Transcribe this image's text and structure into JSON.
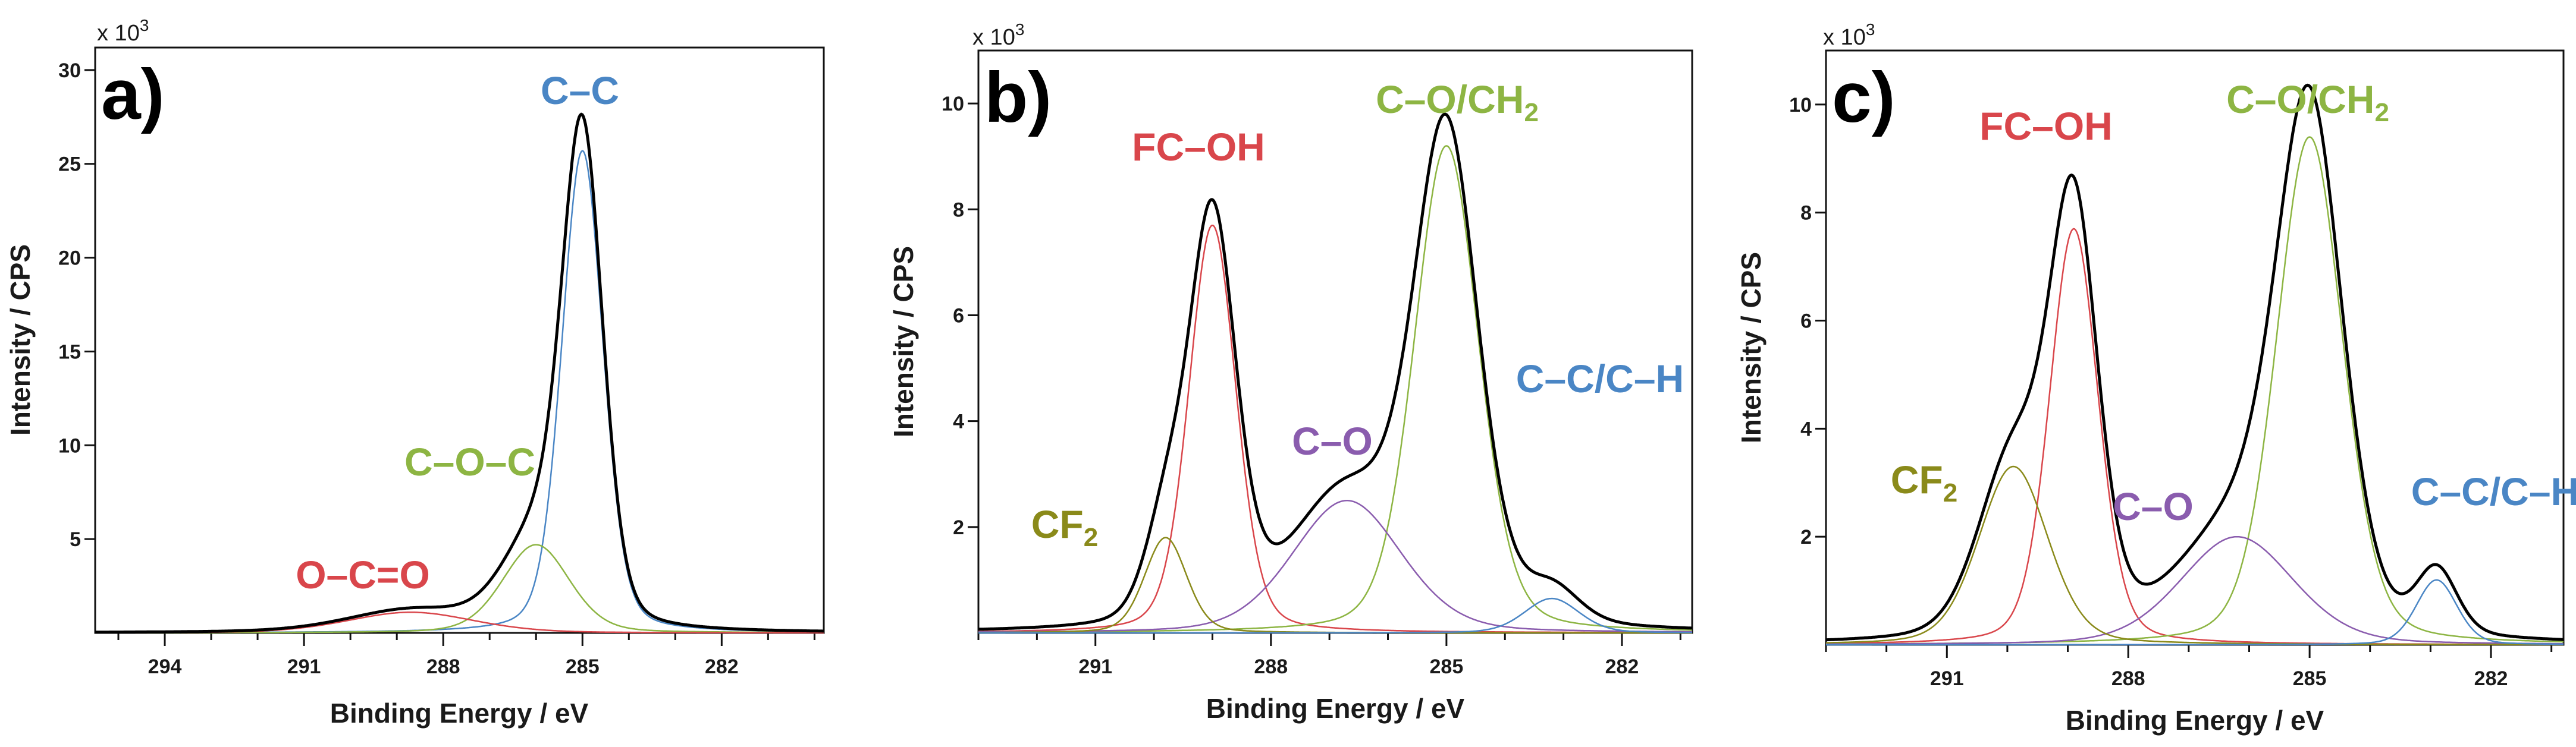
{
  "figure": {
    "xlabel": "Binding Energy / eV",
    "ylabel": "Intensity / CPS"
  },
  "colors": {
    "black": "#000000",
    "red": "#d9464b",
    "green": "#8db543",
    "blue": "#4a86c5",
    "purple": "#8a5cae",
    "olive": "#8a8a1a"
  },
  "chart_data": [
    {
      "panel": "a)",
      "type": "line",
      "title": "",
      "xlabel": "Binding Energy / eV",
      "ylabel": "Intensity / CPS",
      "multiplier": "x 10",
      "multiplier_exp": "3",
      "xlim": [
        295.5,
        279.8
      ],
      "ylim": [
        0,
        31.2
      ],
      "xticks": [
        294,
        291,
        288,
        285,
        282
      ],
      "yticks": [
        5,
        10,
        15,
        20,
        25,
        30
      ],
      "series": [
        {
          "name": "C–C",
          "label": "C–C",
          "label_sub": "",
          "color": "blue",
          "center": 285.0,
          "amp": 25.7,
          "fwhm": 1.05
        },
        {
          "name": "C–O–C",
          "label": "C–O–C",
          "label_sub": "",
          "color": "green",
          "center": 286.0,
          "amp": 4.7,
          "fwhm": 1.7
        },
        {
          "name": "O–C=O",
          "label": "O–C=O",
          "label_sub": "",
          "color": "red",
          "center": 288.7,
          "amp": 1.1,
          "fwhm": 3.2
        }
      ],
      "background": 0.0,
      "envelope": "sum",
      "envelope_color": "black"
    },
    {
      "panel": "b)",
      "type": "line",
      "title": "",
      "xlabel": "Binding Energy / eV",
      "ylabel": "Intensity / CPS",
      "multiplier": "x 10",
      "multiplier_exp": "3",
      "xlim": [
        293.0,
        280.8
      ],
      "ylim": [
        0,
        11.0
      ],
      "xticks": [
        291,
        288,
        285,
        282
      ],
      "yticks": [
        2,
        4,
        6,
        8,
        10
      ],
      "series": [
        {
          "name": "FC–OH",
          "label": "FC–OH",
          "label_sub": "",
          "color": "red",
          "center": 289.0,
          "amp": 7.7,
          "fwhm": 0.95
        },
        {
          "name": "C–O/CH2",
          "label": "C–O/CH",
          "label_sub": "2",
          "color": "green",
          "center": 285.0,
          "amp": 9.2,
          "fwhm": 1.3
        },
        {
          "name": "C–O",
          "label": "C–O",
          "label_sub": "",
          "color": "purple",
          "center": 286.7,
          "amp": 2.5,
          "fwhm": 2.2
        },
        {
          "name": "CF2",
          "label": "CF",
          "label_sub": "2",
          "color": "olive",
          "center": 289.8,
          "amp": 1.8,
          "fwhm": 0.85
        },
        {
          "name": "C–C/C–H",
          "label": "C–C/C–H",
          "label_sub": "",
          "color": "blue",
          "center": 283.2,
          "amp": 0.65,
          "fwhm": 1.1
        }
      ],
      "background": 0.0,
      "envelope": "sum",
      "envelope_color": "black"
    },
    {
      "panel": "c)",
      "type": "line",
      "title": "",
      "xlabel": "Binding Energy / eV",
      "ylabel": "Intensity / CPS",
      "multiplier": "x 10",
      "multiplier_exp": "3",
      "xlim": [
        293.0,
        280.8
      ],
      "ylim": [
        0,
        11.0
      ],
      "xticks": [
        291,
        288,
        285,
        282
      ],
      "yticks": [
        2,
        4,
        6,
        8,
        10
      ],
      "series": [
        {
          "name": "FC–OH",
          "label": "FC–OH",
          "label_sub": "",
          "color": "red",
          "center": 288.9,
          "amp": 7.7,
          "fwhm": 0.95
        },
        {
          "name": "C–O/CH2",
          "label": "C–O/CH",
          "label_sub": "2",
          "color": "green",
          "center": 285.0,
          "amp": 9.4,
          "fwhm": 1.3
        },
        {
          "name": "C–O",
          "label": "C–O",
          "label_sub": "",
          "color": "purple",
          "center": 286.2,
          "amp": 2.0,
          "fwhm": 2.2
        },
        {
          "name": "CF2",
          "label": "CF",
          "label_sub": "2",
          "color": "olive",
          "center": 289.9,
          "amp": 3.3,
          "fwhm": 1.35
        },
        {
          "name": "C–C/C–H",
          "label": "C–C/C–H",
          "label_sub": "",
          "color": "blue",
          "center": 282.9,
          "amp": 1.2,
          "fwhm": 0.8
        }
      ],
      "background": 0.0,
      "envelope": "sum",
      "envelope_color": "black"
    }
  ]
}
